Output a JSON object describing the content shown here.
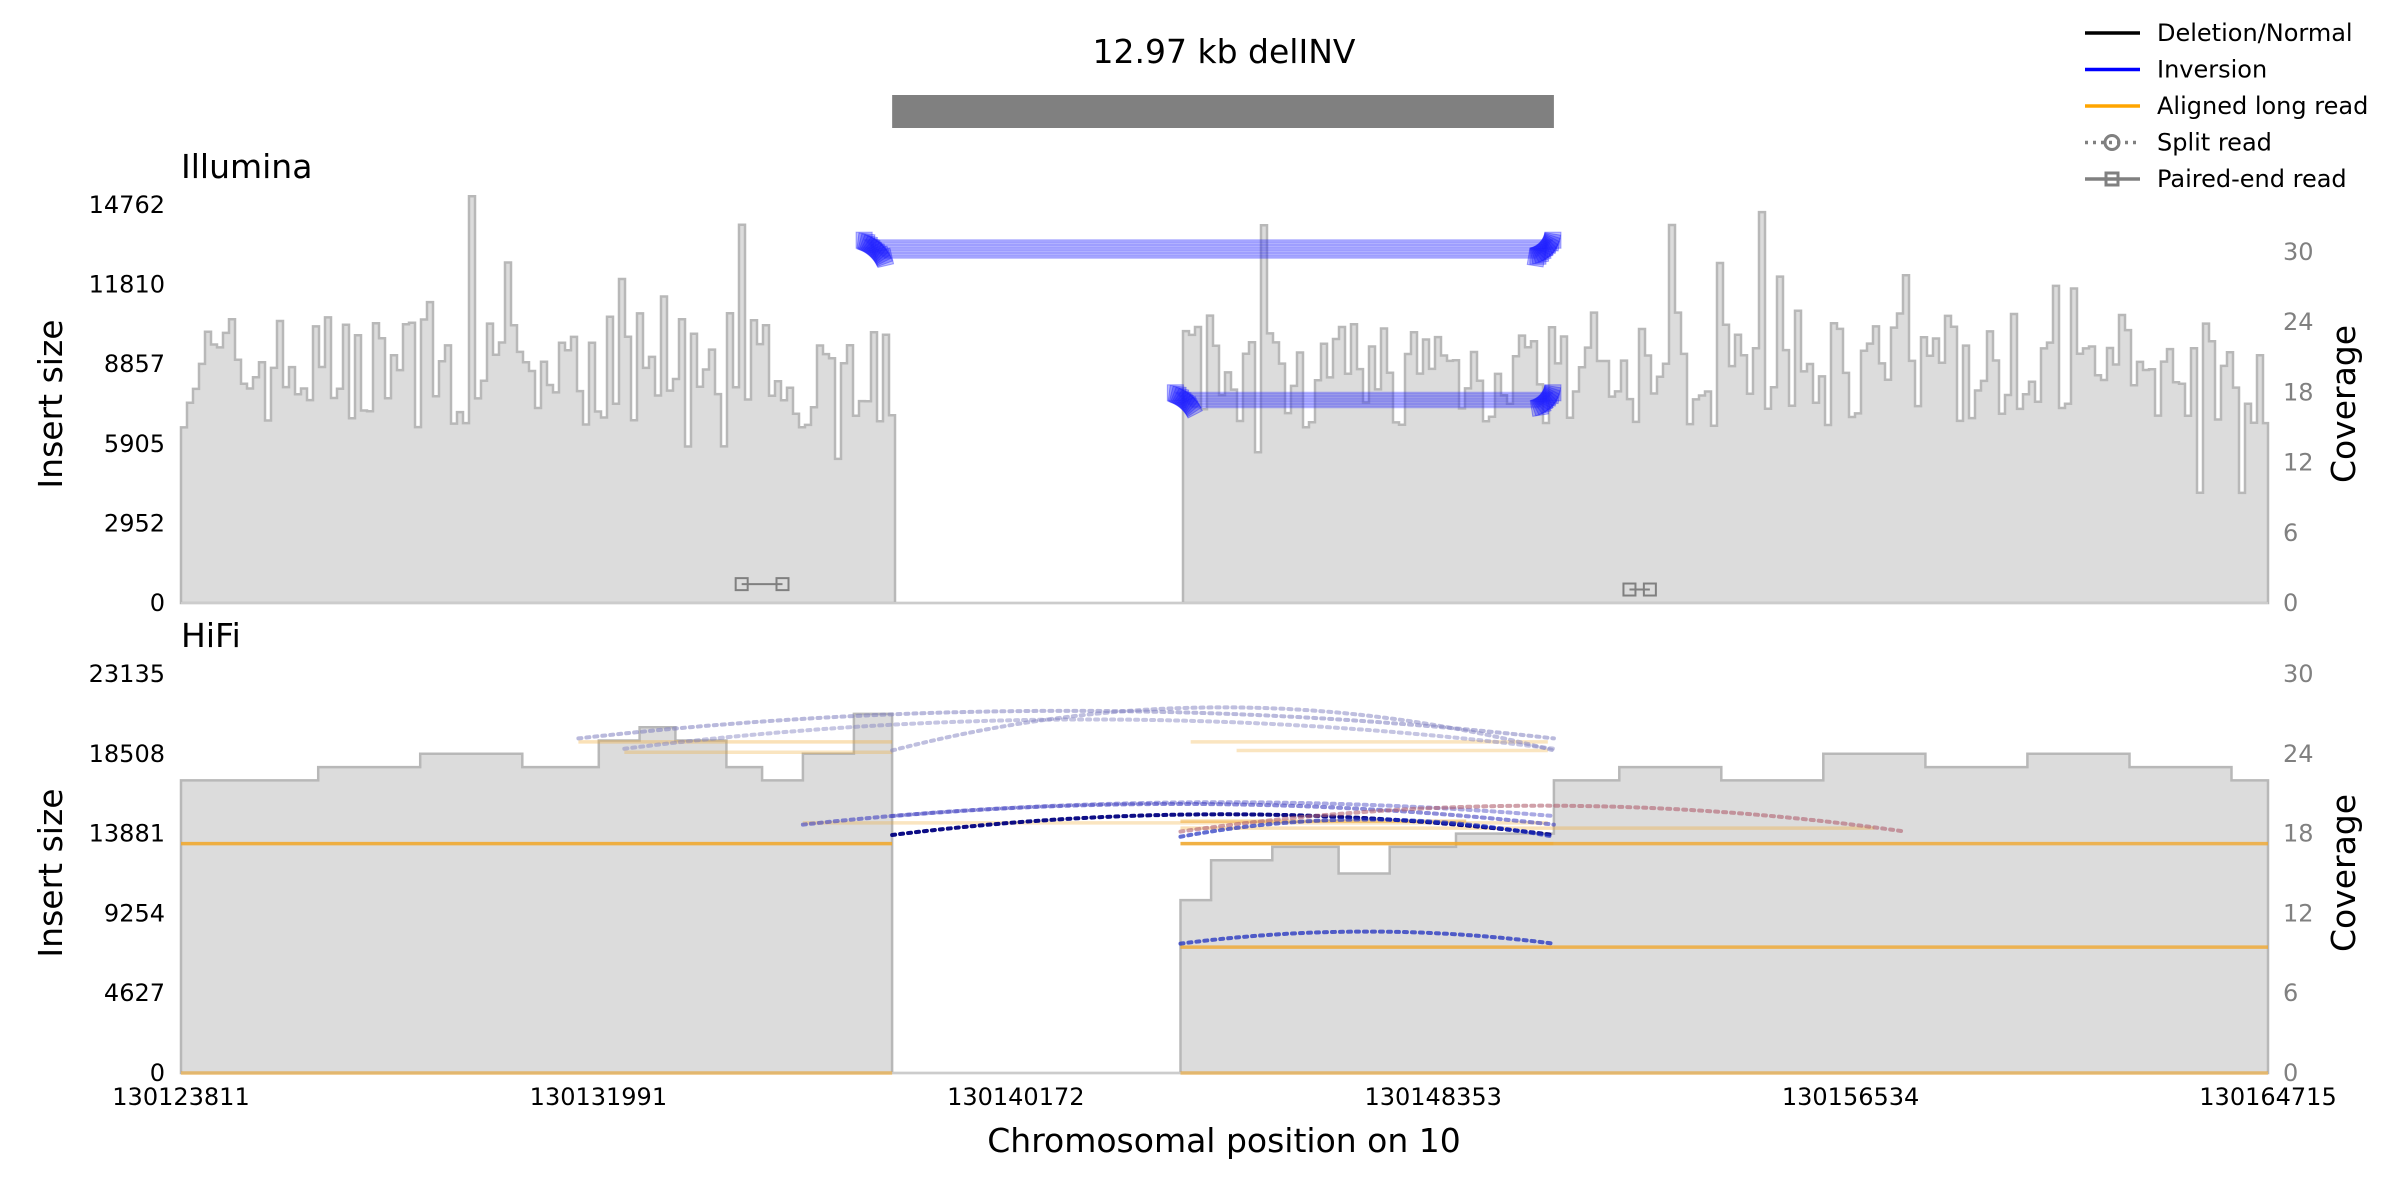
{
  "chart_data": {
    "type": "area",
    "title": "12.97 kb delINV",
    "xlabel": "Chromosomal position on 10",
    "x_range": [
      130123811,
      130164715
    ],
    "x_ticks": [
      "130123811",
      "130131991",
      "130140172",
      "130148353",
      "130156534",
      "130164715"
    ],
    "sv": {
      "label": "12.97 kb delINV",
      "start": 130137749,
      "end": 130150719
    },
    "deletion_gap": {
      "start": 130137749,
      "end": 130143400
    },
    "legend": {
      "placement": "top-right",
      "entries": [
        {
          "label": "Deletion/Normal",
          "color": "#000000",
          "style": "solid"
        },
        {
          "label": "Inversion",
          "color": "#0000ff",
          "style": "solid"
        },
        {
          "label": "Aligned long read",
          "color": "#ffa500",
          "style": "solid"
        },
        {
          "label": "Split read",
          "color": "#808080",
          "style": "dotted-circle"
        },
        {
          "label": "Paired-end read",
          "color": "#808080",
          "style": "solid-square"
        }
      ]
    },
    "panels": [
      {
        "name": "Illumina",
        "ylabel": "Insert size",
        "y2label": "Coverage",
        "ylim": [
          0,
          14762
        ],
        "y_ticks": [
          "0",
          "2952",
          "5905",
          "8857",
          "11810",
          "14762"
        ],
        "y2lim": [
          0,
          34
        ],
        "y2_ticks": [
          "0",
          "6",
          "12",
          "18",
          "24",
          "30"
        ],
        "coverage_seed": 7,
        "coverage_mean": 20,
        "coverage_spread": 5,
        "paired_end_normal": [
          {
            "start": 130134800,
            "end": 130135600,
            "insert": 700
          },
          {
            "start": 130152200,
            "end": 130152600,
            "insert": 500
          }
        ],
        "paired_end_inversion": [
          {
            "start": 130137200,
            "end": 130150700,
            "insert": 13100,
            "count": 12
          },
          {
            "start": 130143300,
            "end": 130150700,
            "insert": 7500,
            "count": 10
          }
        ]
      },
      {
        "name": "HiFi",
        "ylabel": "Insert size",
        "y2label": "Coverage",
        "ylim": [
          0,
          23135
        ],
        "y_ticks": [
          "0",
          "4627",
          "9254",
          "13881",
          "18508",
          "23135"
        ],
        "y2lim": [
          0,
          30
        ],
        "y2_ticks": [
          "0",
          "6",
          "12",
          "18",
          "24",
          "30"
        ],
        "coverage_segments": [
          {
            "x": 130123811,
            "y": 22
          },
          {
            "x": 130124500,
            "y": 22
          },
          {
            "x": 130126500,
            "y": 23
          },
          {
            "x": 130128500,
            "y": 24
          },
          {
            "x": 130130500,
            "y": 23
          },
          {
            "x": 130132000,
            "y": 25
          },
          {
            "x": 130132800,
            "y": 26
          },
          {
            "x": 130133500,
            "y": 25
          },
          {
            "x": 130134500,
            "y": 23
          },
          {
            "x": 130135200,
            "y": 22
          },
          {
            "x": 130136000,
            "y": 24
          },
          {
            "x": 130137000,
            "y": 27
          },
          {
            "x": 130137749,
            "y": 0
          },
          {
            "x": 130143400,
            "y": 13
          },
          {
            "x": 130144000,
            "y": 16
          },
          {
            "x": 130145200,
            "y": 17
          },
          {
            "x": 130146500,
            "y": 15
          },
          {
            "x": 130147500,
            "y": 17
          },
          {
            "x": 130148800,
            "y": 18
          },
          {
            "x": 130150719,
            "y": 22
          },
          {
            "x": 130152000,
            "y": 23
          },
          {
            "x": 130154000,
            "y": 22
          },
          {
            "x": 130156000,
            "y": 24
          },
          {
            "x": 130158000,
            "y": 23
          },
          {
            "x": 130160000,
            "y": 24
          },
          {
            "x": 130162000,
            "y": 23
          },
          {
            "x": 130164000,
            "y": 22
          },
          {
            "x": 130164715,
            "y": 22
          }
        ],
        "long_reads": [
          {
            "start": 130123811,
            "end": 130137749,
            "insert": 13300,
            "opacity": 0.9
          },
          {
            "start": 130143400,
            "end": 130150719,
            "insert": 13300,
            "opacity": 0.9
          },
          {
            "start": 130150719,
            "end": 130164715,
            "insert": 13300,
            "opacity": 0.8
          },
          {
            "start": 130143400,
            "end": 130150719,
            "insert": 7300,
            "opacity": 0.8
          },
          {
            "start": 130150719,
            "end": 130164715,
            "insert": 7300,
            "opacity": 0.8
          },
          {
            "start": 130123811,
            "end": 130137749,
            "insert": 0,
            "opacity": 0.6
          },
          {
            "start": 130143400,
            "end": 130164715,
            "insert": 0,
            "opacity": 0.6
          },
          {
            "start": 130131600,
            "end": 130137749,
            "insert": 19200,
            "opacity": 0.35
          },
          {
            "start": 130132500,
            "end": 130137749,
            "insert": 18600,
            "opacity": 0.3
          },
          {
            "start": 130143600,
            "end": 130150600,
            "insert": 19200,
            "opacity": 0.3
          },
          {
            "start": 130144500,
            "end": 130150600,
            "insert": 18700,
            "opacity": 0.3
          },
          {
            "start": 130136000,
            "end": 130150600,
            "insert": 14500,
            "opacity": 0.3
          },
          {
            "start": 130143400,
            "end": 130157000,
            "insert": 14200,
            "opacity": 0.35
          },
          {
            "start": 130143400,
            "end": 130149000,
            "insert": 14600,
            "opacity": 0.5
          }
        ],
        "split_reads": [
          {
            "start": 130131600,
            "end": 130150719,
            "insert": 19400,
            "peak": 21000,
            "color": "#7f7fbf",
            "opacity": 0.55
          },
          {
            "start": 130132500,
            "end": 130150719,
            "insert": 18800,
            "peak": 20500,
            "color": "#7f7fbf",
            "opacity": 0.45
          },
          {
            "start": 130137749,
            "end": 130150719,
            "insert": 18700,
            "peak": 21200,
            "color": "#7f7fbf",
            "opacity": 0.5
          },
          {
            "start": 130137749,
            "end": 130150719,
            "insert": 13800,
            "peak": 15000,
            "color": "#000080",
            "opacity": 0.95
          },
          {
            "start": 130136000,
            "end": 130150719,
            "insert": 14400,
            "peak": 15600,
            "color": "#4040c0",
            "opacity": 0.6
          },
          {
            "start": 130137749,
            "end": 130150719,
            "insert": 14900,
            "peak": 15700,
            "color": "#4040c0",
            "opacity": 0.45
          },
          {
            "start": 130143400,
            "end": 130157600,
            "insert": 14000,
            "peak": 15500,
            "color": "#b06070",
            "opacity": 0.6
          },
          {
            "start": 130143400,
            "end": 130150719,
            "insert": 13700,
            "peak": 14700,
            "color": "#2030c0",
            "opacity": 0.7
          },
          {
            "start": 130143400,
            "end": 130150719,
            "insert": 7500,
            "peak": 8200,
            "color": "#2030c0",
            "opacity": 0.75
          }
        ]
      }
    ]
  }
}
